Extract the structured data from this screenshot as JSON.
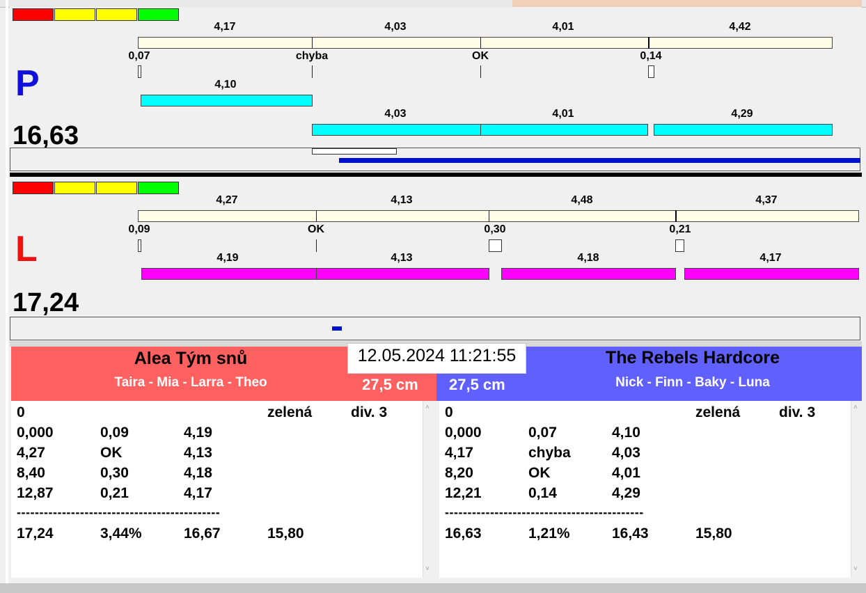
{
  "topLane": {
    "letter": "P",
    "letter_color": "#1010dd",
    "total": "16,63",
    "seg_labels": [
      "4,17",
      "4,03",
      "4,01",
      "4,42"
    ],
    "mark_labels": [
      "0,07",
      "chyba",
      "OK",
      "0,14"
    ],
    "bar_labels": [
      "4,10",
      "4,03",
      "4,01",
      "4,29"
    ],
    "bar_color": "#00ffff"
  },
  "bottomLane": {
    "letter": "L",
    "letter_color": "#ee1111",
    "total": "17,24",
    "seg_labels": [
      "4,27",
      "4,13",
      "4,48",
      "4,37"
    ],
    "mark_labels": [
      "0,09",
      "OK",
      "0,30",
      "0,21"
    ],
    "bar_labels": [
      "4,19",
      "4,13",
      "4,18",
      "4,17"
    ],
    "bar_color": "#ff00ff"
  },
  "indicator_colors": [
    "#ff0000",
    "#ffff00",
    "#ffff00",
    "#00ff00"
  ],
  "datetime": "12.05.2024 11:21:55",
  "leftTeam": {
    "name": "Alea Tým snů",
    "members": "Taira - Mia - Larra - Theo",
    "distance": "27,5 cm",
    "color": "#ff6060",
    "header": [
      "0",
      "zelená",
      "div. 3"
    ],
    "rows": [
      [
        "0,000",
        "0,09",
        "4,19"
      ],
      [
        "4,27",
        "OK",
        "4,13"
      ],
      [
        "8,40",
        "0,30",
        "4,18"
      ],
      [
        "12,87",
        "0,21",
        "4,17"
      ]
    ],
    "separator": "---------------------------------------------",
    "summary": [
      "17,24",
      "3,44%",
      "16,67",
      "15,80"
    ]
  },
  "rightTeam": {
    "name": "The Rebels Hardcore",
    "members": "Nick - Finn - Baky - Luna",
    "distance": "27,5 cm",
    "color": "#6060ff",
    "header": [
      "0",
      "zelená",
      "div. 3"
    ],
    "rows": [
      [
        "0,000",
        "0,07",
        "4,10"
      ],
      [
        "4,17",
        "chyba",
        "4,03"
      ],
      [
        "8,20",
        "OK",
        "4,01"
      ],
      [
        "12,21",
        "0,14",
        "4,29"
      ]
    ],
    "separator": "--------------------------------------------",
    "summary": [
      "16,63",
      "1,21%",
      "16,43",
      "15,80"
    ]
  }
}
